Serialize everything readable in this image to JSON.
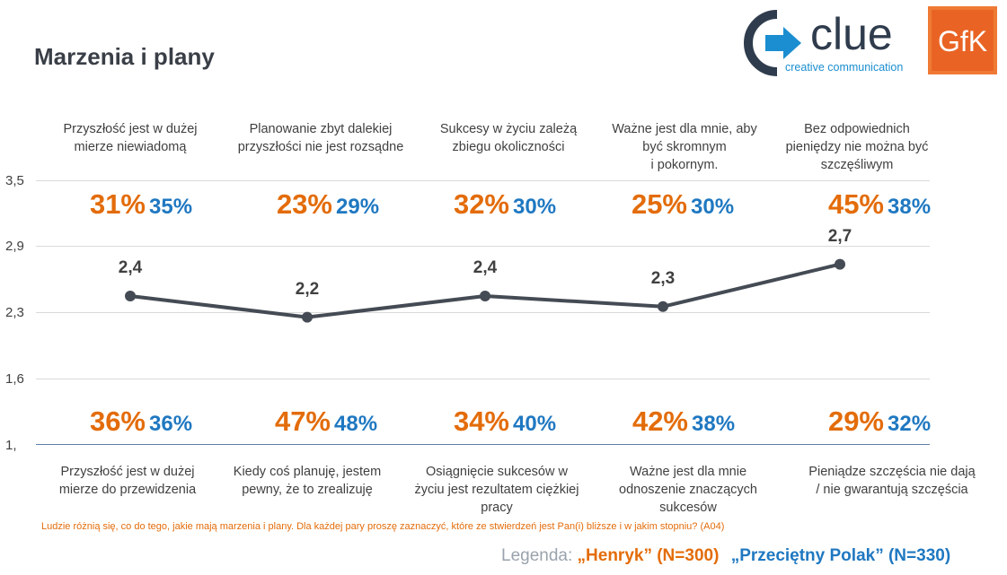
{
  "title": "Marzenia i plany",
  "logos": {
    "clue_name": "clue",
    "clue_tagline": "creative communication",
    "gfk": "GfK"
  },
  "question": "Ludzie różnią się, co do tego, jakie mają marzenia i plany. Dla każdej pary proszę zaznaczyć, które ze stwierdzeń jest Pan(i) bliższe i w jakim stopniu? (A04)",
  "legend": {
    "label": "Legenda:",
    "henryk": "„Henryk” (N=300)",
    "polak": "„Przeciętny Polak” (N=330)"
  },
  "colors": {
    "henryk": "#e36c0a",
    "polak": "#1f78c1",
    "line": "#454b54",
    "grid": "#d9d9d9",
    "axis": "#5a7fa8"
  },
  "chart_data": {
    "type": "line",
    "yticks": [
      "3,5",
      "2,9",
      "2,3",
      "1,6",
      "1,"
    ],
    "ylim": [
      1.0,
      3.5
    ],
    "values": [
      2.4,
      2.2,
      2.4,
      2.3,
      2.7
    ],
    "value_labels": [
      "2,4",
      "2,2",
      "2,4",
      "2,3",
      "2,7"
    ],
    "top_labels": [
      [
        "Przyszłość jest w dużej",
        "mierze niewiadomą"
      ],
      [
        "Planowanie  zbyt dalekiej",
        "przyszłości nie jest rozsądne"
      ],
      [
        "Sukcesy w życiu zależą",
        "zbiegu okoliczności"
      ],
      [
        "Ważne jest dla mnie, aby",
        "być skromnym",
        "i pokornym."
      ],
      [
        "Bez odpowiednich",
        "pieniędzy  nie można być",
        "szczęśliwym"
      ]
    ],
    "bottom_labels": [
      [
        "Przyszłość jest w dużej",
        "mierze do przewidzenia"
      ],
      [
        "Kiedy coś planuję,  jestem",
        "pewny, że to zrealizuję"
      ],
      [
        "Osiągnięcie sukcesów w",
        "życiu jest rezultatem ciężkiej",
        "pracy"
      ],
      [
        "Ważne jest dla mnie",
        "odnoszenie znaczących",
        "sukcesów"
      ],
      [
        "Pieniądze szczęścia nie dają",
        "/ nie gwarantują szczęścia"
      ]
    ],
    "top_pct": [
      {
        "henryk": "31%",
        "polak": "35%"
      },
      {
        "henryk": "23%",
        "polak": "29%"
      },
      {
        "henryk": "32%",
        "polak": "30%"
      },
      {
        "henryk": "25%",
        "polak": "30%"
      },
      {
        "henryk": "45%",
        "polak": "38%"
      }
    ],
    "bottom_pct": [
      {
        "henryk": "36%",
        "polak": "36%"
      },
      {
        "henryk": "47%",
        "polak": "48%"
      },
      {
        "henryk": "34%",
        "polak": "40%"
      },
      {
        "henryk": "42%",
        "polak": "38%"
      },
      {
        "henryk": "29%",
        "polak": "32%"
      }
    ]
  }
}
